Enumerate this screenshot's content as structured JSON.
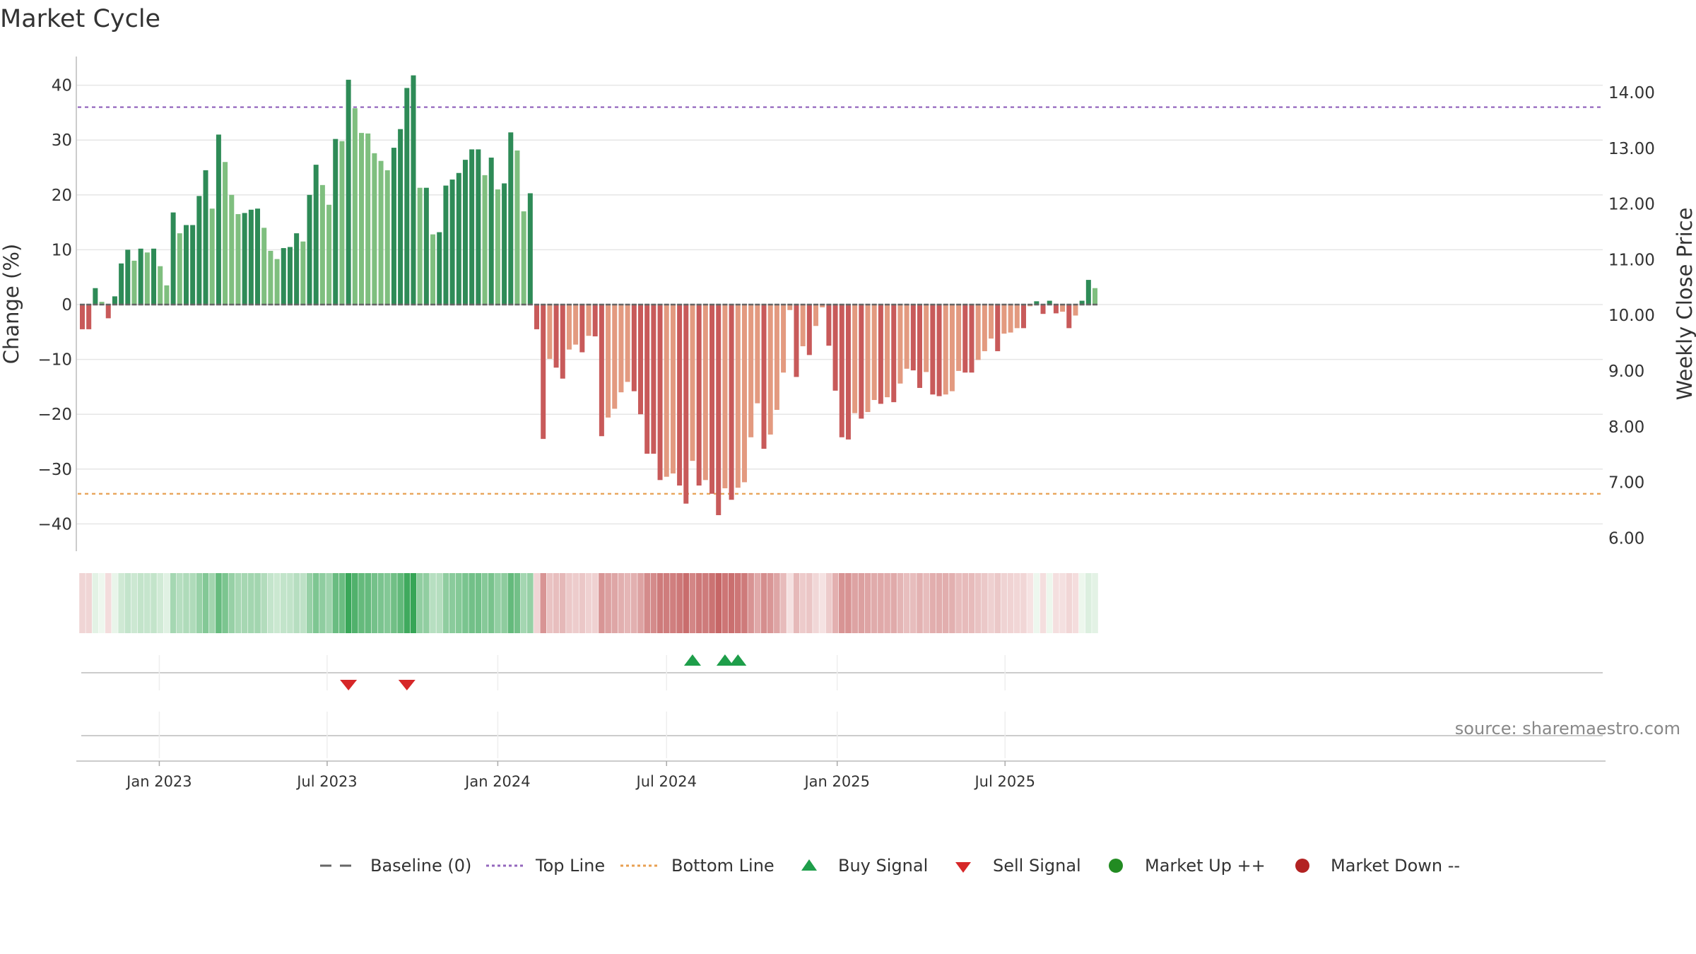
{
  "chart_data": {
    "type": "bar",
    "title": "Market Cycle",
    "ylabel": "Change (%)",
    "y2label": "Weekly Close Price",
    "ylim": [
      -45,
      45
    ],
    "yticks": [
      40,
      30,
      20,
      10,
      0,
      -10,
      -20,
      -30,
      -40
    ],
    "ytick_labels": [
      "40",
      "30",
      "20",
      "10",
      "0",
      "−10",
      "−20",
      "−30",
      "−40"
    ],
    "y2ticks": [
      "14.00",
      "13.00",
      "12.00",
      "11.00",
      "10.00",
      "9.00",
      "8.00",
      "7.00",
      "6.00"
    ],
    "top_line": 36,
    "bottom_line": -34.5,
    "x_start": "2022-10-10",
    "x_step_days": 7,
    "date_ticks": [
      {
        "date": "2023-01-01",
        "label": "Jan 2023"
      },
      {
        "date": "2023-07-01",
        "label": "Jul 2023"
      },
      {
        "date": "2024-01-01",
        "label": "Jan 2024"
      },
      {
        "date": "2024-07-01",
        "label": "Jul 2024"
      },
      {
        "date": "2025-01-01",
        "label": "Jan 2025"
      },
      {
        "date": "2025-07-01",
        "label": "Jul 2025"
      }
    ],
    "values": [
      -4.5,
      -4.5,
      3,
      0.5,
      -2.5,
      1.5,
      7.5,
      10,
      8,
      10.2,
      9.5,
      10.2,
      7,
      3.5,
      16.8,
      13,
      14.5,
      14.5,
      19.8,
      24.5,
      17.5,
      31,
      26,
      20,
      16.5,
      16.7,
      17.3,
      17.5,
      14,
      9.8,
      8.3,
      10.3,
      10.5,
      13,
      11.5,
      20,
      25.5,
      21.8,
      18.2,
      30.2,
      29.8,
      41,
      35.8,
      31.3,
      31.2,
      27.6,
      26.2,
      24.5,
      28.6,
      32,
      39.5,
      41.8,
      21.3,
      21.3,
      12.8,
      13.2,
      21.7,
      22.8,
      24,
      26.4,
      28.3,
      28.3,
      23.6,
      26.8,
      21,
      22.1,
      31.4,
      28.1,
      17,
      20.3,
      -4.5,
      -24.5,
      -9.9,
      -11.5,
      -13.5,
      -8.2,
      -7.3,
      -8.7,
      -5.7,
      -5.8,
      -24,
      -20.6,
      -19,
      -16,
      -14.1,
      -15.8,
      -20,
      -27.2,
      -27.2,
      -32,
      -31.4,
      -30.8,
      -33,
      -36.3,
      -28.5,
      -33,
      -32,
      -34.5,
      -38.4,
      -33.5,
      -35.6,
      -33.4,
      -32.4,
      -24.2,
      -18,
      -26.3,
      -23.7,
      -19.2,
      -12.4,
      -1,
      -13.2,
      -7.6,
      -9.2,
      -3.9,
      -0.5,
      -7.5,
      -15.7,
      -24.2,
      -24.6,
      -19.8,
      -20.8,
      -19.6,
      -17.4,
      -18.1,
      -16.9,
      -17.8,
      -14.4,
      -11.7,
      -12,
      -15.2,
      -12.3,
      -16.4,
      -16.7,
      -16.4,
      -15.8,
      -12.1,
      -12.4,
      -12.4,
      -10.1,
      -8.5,
      -6.2,
      -8.5,
      -5.3,
      -5.1,
      -4.3,
      -4.3,
      -0.3,
      0.6,
      -1.7,
      0.7,
      -1.6,
      -1.3,
      -4.3,
      -2,
      0.7,
      4.5,
      3
    ],
    "buy_signals": [
      94,
      99,
      101
    ],
    "sell_signals": [
      41,
      50
    ],
    "colors": {
      "up_strong": "#2e8b57",
      "up_light": "#7fbf7f",
      "down_strong": "#c85a5a",
      "down_light": "#e39a80",
      "top_line": "#9467bd",
      "bottom_line": "#e8a052",
      "baseline": "#666666",
      "buy": "#1e9e4a",
      "sell": "#d62728",
      "market_up": "#228b22",
      "market_down": "#b22222"
    }
  },
  "legend": {
    "baseline": "Baseline (0)",
    "top_line": "Top Line",
    "bottom_line": "Bottom Line",
    "buy": "Buy Signal",
    "sell": "Sell Signal",
    "market_up": "Market Up ++",
    "market_down": "Market Down --"
  },
  "source": "source: sharemaestro.com"
}
